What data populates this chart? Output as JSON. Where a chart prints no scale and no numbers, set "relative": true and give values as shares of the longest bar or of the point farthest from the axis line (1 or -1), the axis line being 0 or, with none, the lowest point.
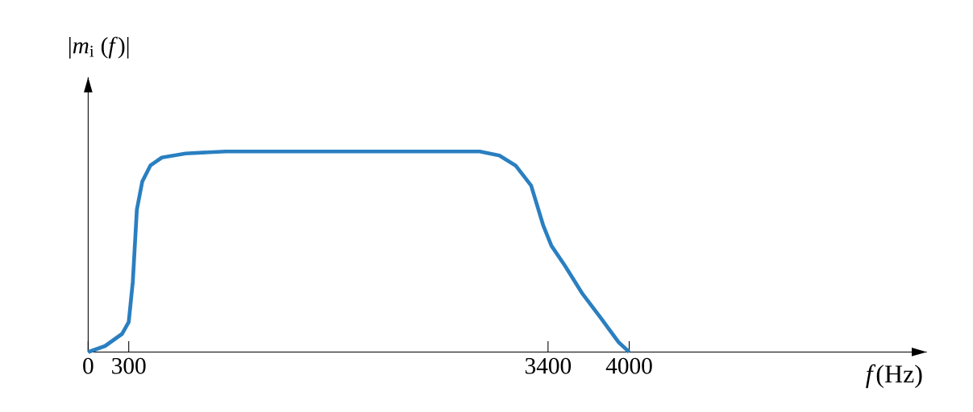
{
  "chart_data": {
    "type": "line",
    "relative": true,
    "xlabel": "*f*(Hz)",
    "ylabel": "|*m*$_{i}$ (*f*)|",
    "x": [
      0,
      125,
      250,
      300,
      330,
      360,
      400,
      460,
      545,
      720,
      1015,
      2895,
      3040,
      3160,
      3275,
      3365,
      3425,
      3525,
      3655,
      3790,
      3920,
      4000
    ],
    "series": [
      {
        "color": "#2a7fc0",
        "values": [
          0,
          0.03,
          0.09,
          0.15,
          0.35,
          0.71,
          0.85,
          0.93,
          0.97,
          0.99,
          1,
          1,
          0.98,
          0.93,
          0.83,
          0.63,
          0.53,
          0.43,
          0.29,
          0.17,
          0.05,
          0
        ]
      }
    ],
    "xlim": [
      0,
      6200
    ],
    "xticks": [
      0,
      300,
      3400,
      4000
    ],
    "marker": "none",
    "line_style": "solid"
  }
}
